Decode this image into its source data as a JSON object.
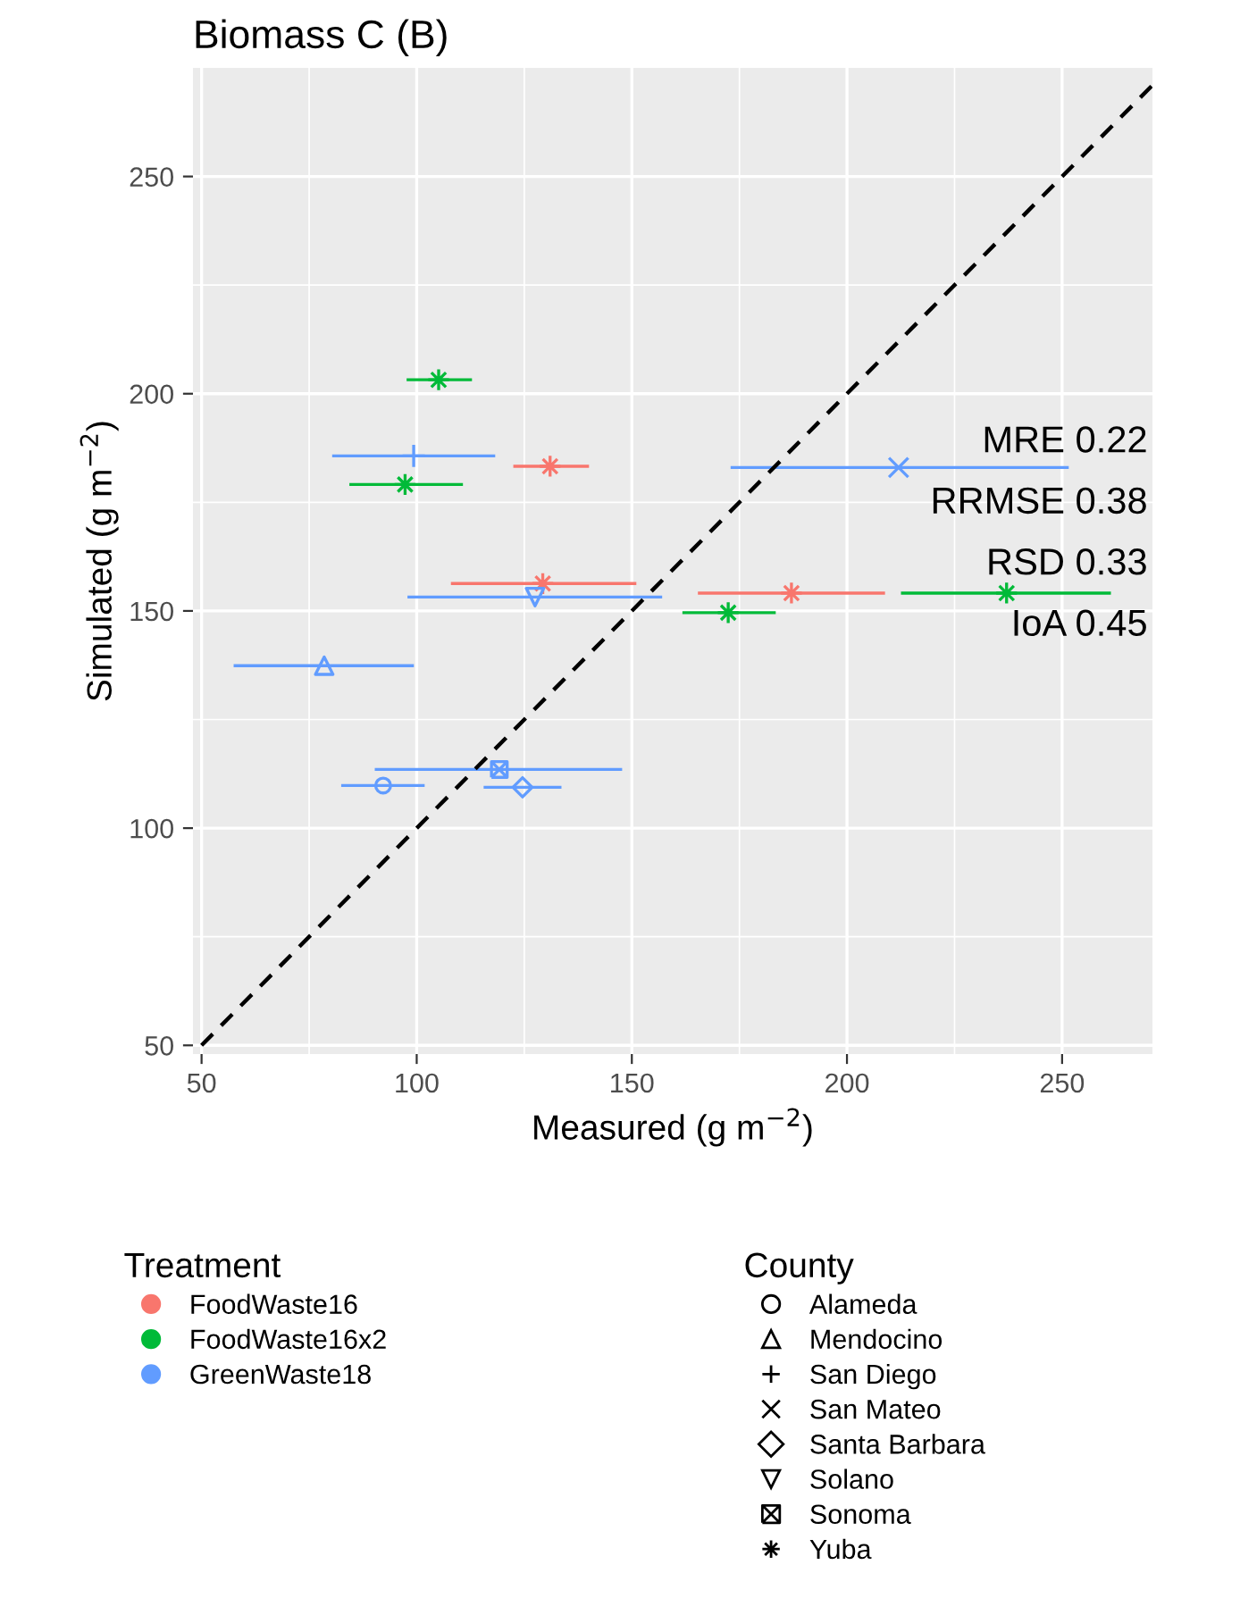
{
  "chart_data": {
    "type": "scatter",
    "title": "Biomass C (B)",
    "xlabel": "Measured (g m$^{−2}$)",
    "ylabel": "Simulated (g m$^{−2}$)",
    "xlim": [
      48,
      271
    ],
    "ylim": [
      48,
      275
    ],
    "xticks": [
      50,
      100,
      150,
      200,
      250
    ],
    "yticks": [
      50,
      100,
      150,
      200,
      250
    ],
    "grid": true,
    "legend": "bottom",
    "legend_title": [
      "Treatment",
      "County"
    ],
    "series": [
      {
        "name": "FoodWaste16",
        "color": "#f8766d",
        "x": [
          131,
          129.3,
          187.1
        ],
        "values": [
          183.3,
          156.3,
          154.1
        ],
        "xerrors": [
          [
            122.8,
            139.7
          ],
          [
            108.3,
            150.7
          ],
          [
            165.7,
            208.5
          ]
        ],
        "marker": [
          "asterisk",
          "asterisk",
          "asterisk"
        ]
      },
      {
        "name": "FoodWaste16x2",
        "color": "#00ba38",
        "x": [
          105.1,
          97.3,
          172.4,
          237.1
        ],
        "values": [
          203.2,
          179.1,
          149.6,
          154.1
        ],
        "xerrors": [
          [
            98.0,
            112.5
          ],
          [
            84.7,
            110.4
          ],
          [
            162.1,
            183.1
          ],
          [
            212.9,
            261.0
          ]
        ],
        "marker": [
          "asterisk",
          "asterisk",
          "asterisk",
          "asterisk"
        ]
      },
      {
        "name": "GreenWaste18",
        "color": "#619cff",
        "x": [
          99.3,
          212,
          127.5,
          78.5,
          119.2,
          92.2,
          124.6
        ],
        "values": [
          185.7,
          183.0,
          153.2,
          137.4,
          113.5,
          109.8,
          109.4
        ],
        "xerrors": [
          [
            80.7,
            117.9
          ],
          [
            173.3,
            251.2
          ],
          [
            98.2,
            156.7
          ],
          [
            57.8,
            99.0
          ],
          [
            90.6,
            147.4
          ],
          [
            82.8,
            101.5
          ],
          [
            115.9,
            133.3
          ]
        ],
        "marker": [
          "plus",
          "cross",
          "triangle_down",
          "triangle",
          "square_cross",
          "circle",
          "diamond"
        ]
      },
      {
        "type": "line",
        "x": [
          50,
          271
        ],
        "values": [
          50,
          271
        ],
        "color": "#000000",
        "line_style": "dashed"
      },
      {
        "name": "Alameda",
        "marker": [
          "circle"
        ],
        "color": "#000000"
      },
      {
        "name": "Mendocino",
        "marker": [
          "triangle"
        ],
        "color": "#000000"
      },
      {
        "name": "San Diego",
        "marker": [
          "plus"
        ],
        "color": "#000000"
      },
      {
        "name": "San Mateo",
        "marker": [
          "cross"
        ],
        "color": "#000000"
      },
      {
        "name": "Santa Barbara",
        "marker": [
          "diamond"
        ],
        "color": "#000000"
      },
      {
        "name": "Solano",
        "marker": [
          "triangle_down"
        ],
        "color": "#000000"
      },
      {
        "name": "Sonoma",
        "marker": [
          "square_cross"
        ],
        "color": "#000000"
      },
      {
        "name": "Yuba",
        "marker": [
          "asterisk"
        ],
        "color": "#000000"
      }
    ],
    "annotations": [
      "MRE 0.22",
      "RRMSE 0.38",
      "RSD 0.33",
      "IoA 0.45"
    ]
  }
}
